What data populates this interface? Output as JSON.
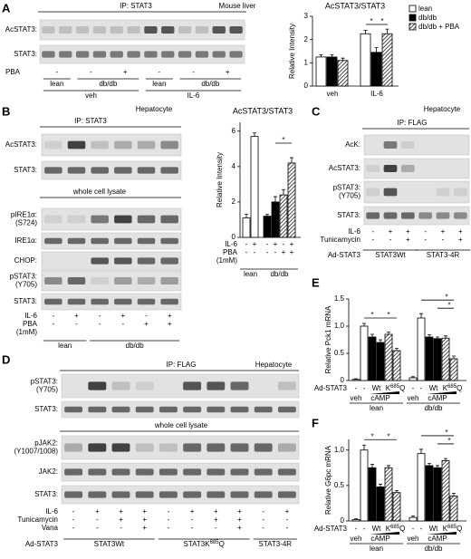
{
  "panels": {
    "A": {
      "letter": "A",
      "ip": "IP: STAT3",
      "source": "Mouse liver",
      "rows": [
        [
          "AcSTAT3:"
        ],
        [
          "STAT3:"
        ]
      ],
      "pba": "PBA",
      "pba_signs": [
        "-",
        "-",
        "+",
        "-",
        "-",
        "+"
      ],
      "genotypes": [
        "lean",
        "db/db",
        "lean",
        "db/db"
      ],
      "treatments": [
        "veh",
        "IL-6"
      ]
    },
    "B": {
      "letter": "B",
      "source": "Hepatocyte",
      "ip": "IP: STAT3",
      "rows_ip": [
        [
          "AcSTAT3:"
        ],
        [
          "STAT3:"
        ]
      ],
      "lysate": "whole cell lysate",
      "rows_lysate": [
        [
          "pIRE1α:",
          "(S724)"
        ],
        [
          "IRE1α:"
        ],
        [
          "CHOP:"
        ],
        [
          "pSTAT3:",
          "(Y705)"
        ],
        [
          "STAT3:"
        ]
      ],
      "conditions": [
        {
          "label": [
            "IL-6"
          ],
          "signs": [
            "-",
            "+",
            "-",
            "+",
            "-",
            "+"
          ]
        },
        {
          "label": [
            "PBA",
            "(1mM)"
          ],
          "signs": [
            "-",
            "-",
            "-",
            "-",
            "+",
            "+"
          ]
        }
      ],
      "groups": [
        "lean",
        "db/db"
      ]
    },
    "C": {
      "letter": "C",
      "source": "Hepatocyte",
      "ip": "IP: FLAG",
      "rows": [
        [
          "AcK:"
        ],
        [
          "AcSTAT3:"
        ],
        [
          "pSTAT3:",
          "(Y705)"
        ],
        [
          "STAT3:"
        ]
      ],
      "conditions": [
        {
          "label": [
            "IL-6"
          ],
          "signs": [
            "-",
            "+",
            "+",
            "-",
            "+",
            "+"
          ]
        },
        {
          "label": [
            "Tunicamycin"
          ],
          "signs": [
            "-",
            "-",
            "+",
            "-",
            "-",
            "+"
          ]
        }
      ],
      "ad": "Ad-STAT3",
      "groups": [
        "STAT3Wt",
        "STAT3-4R"
      ]
    },
    "D": {
      "letter": "D",
      "ip": "IP: FLAG",
      "source": "Hepatocyte",
      "rows_ip": [
        [
          "pSTAT3:",
          "(Y705)"
        ],
        [
          "STAT3:"
        ]
      ],
      "lysate": "whole cell lysate",
      "rows_lysate": [
        [
          "pJAK2:",
          "(Y1007/1008)"
        ],
        [
          "JAK2:"
        ],
        [
          "STAT3:"
        ]
      ],
      "conditions": [
        {
          "label": [
            "IL-6"
          ],
          "signs": [
            "-",
            "+",
            "+",
            "+",
            "-",
            "+",
            "+",
            "+",
            "-",
            "+"
          ]
        },
        {
          "label": [
            "Tunicamycin"
          ],
          "signs": [
            "-",
            "-",
            "+",
            "+",
            "-",
            "-",
            "+",
            "+",
            "-",
            "-"
          ]
        },
        {
          "label": [
            "Vana"
          ],
          "signs": [
            "-",
            "-",
            "-",
            "+",
            "-",
            "-",
            "-",
            "+",
            "-",
            "-"
          ]
        }
      ],
      "ad": "Ad-STAT3",
      "groups": [
        "STAT3Wt",
        {
          "pre": "STAT3K",
          "sup": "685",
          "post": "Q"
        },
        "STAT3-4R"
      ]
    }
  },
  "chart_data": [
    {
      "type": "bar",
      "title": "AcSTAT3/STAT3",
      "ylabel": "Relative Intensity",
      "categories": [
        "veh",
        "IL-6"
      ],
      "ylim": [
        0,
        3
      ],
      "yticks": [
        0,
        1,
        2,
        3
      ],
      "series": [
        {
          "name": "lean",
          "color": "#ffffff",
          "hatched": false,
          "values": [
            1.25,
            2.25
          ],
          "errors": [
            0.1,
            0.15
          ]
        },
        {
          "name": "db/db",
          "color": "#000000",
          "hatched": false,
          "values": [
            1.25,
            1.45
          ],
          "errors": [
            0.1,
            0.2
          ]
        },
        {
          "name": "db/db + PBA",
          "color": "#000000",
          "hatched": true,
          "values": [
            1.1,
            2.25
          ],
          "errors": [
            0.1,
            0.2
          ]
        }
      ],
      "annotations": [
        "*",
        "*"
      ]
    },
    {
      "type": "bar",
      "title": "AcSTAT3/STAT3",
      "ylabel": "Relative Intensity",
      "ylim": [
        0,
        6.5
      ],
      "yticks": [
        0,
        2,
        4,
        6
      ],
      "values": [
        1.1,
        5.7,
        1.2,
        2.0,
        2.4,
        4.2
      ],
      "errors": [
        0.2,
        0.2,
        0.1,
        0.3,
        0.3,
        0.3
      ],
      "colors": [
        "#ffffff",
        "#ffffff",
        "#000000",
        "#000000",
        "#000000",
        "#000000"
      ],
      "hatched": [
        false,
        false,
        false,
        false,
        true,
        true
      ],
      "conditions": [
        {
          "label": [
            "IL-6"
          ],
          "signs": [
            "-",
            "+",
            "-",
            "+",
            "-",
            "+"
          ]
        },
        {
          "label": [
            "PBA",
            "(1mM)"
          ],
          "signs": [
            "-",
            "-",
            "-",
            "-",
            "+",
            "+"
          ]
        }
      ],
      "groups": [
        "lean",
        "db/db"
      ],
      "annotations": [
        "*"
      ]
    },
    {
      "type": "bar",
      "letter": "E",
      "ylabel": "Relative Pck1 mRNA",
      "ylim": [
        0,
        1.5
      ],
      "yticks": [
        0,
        0.5,
        {
          "value": 1,
          "label": "1.0"
        },
        1.5
      ],
      "values": [
        0.02,
        1.0,
        0.8,
        0.7,
        0.85,
        0.55,
        0.05,
        1.15,
        0.8,
        0.77,
        0.78,
        0.4
      ],
      "errors": [
        0.01,
        0.05,
        0.05,
        0.05,
        0.04,
        0.04,
        0.02,
        0.08,
        0.04,
        0.03,
        0.04,
        0.05
      ],
      "colors": [
        "#ffffff",
        "#ffffff",
        "#000000",
        "#000000",
        "#000000",
        "#000000",
        "#ffffff",
        "#ffffff",
        "#000000",
        "#000000",
        "#000000",
        "#000000"
      ],
      "hatched": [
        false,
        false,
        false,
        false,
        true,
        true,
        false,
        false,
        false,
        false,
        true,
        true
      ],
      "ad": "Ad-STAT3",
      "lanes": [
        "-",
        "-",
        "Wt",
        {
          "pre": "K",
          "sup": "685",
          "post": "Q"
        }
      ],
      "treatments": [
        "veh",
        "cAMP"
      ],
      "groups": [
        "lean",
        "db/db"
      ],
      "annotations": [
        "*",
        "*",
        "*",
        "*"
      ]
    },
    {
      "type": "bar",
      "letter": "F",
      "ylabel": "Relative G6pc mRNA",
      "ylim": [
        0,
        1.15
      ],
      "yticks": [
        0,
        0.5,
        {
          "value": 1,
          "label": "1.0"
        }
      ],
      "values": [
        0.02,
        1.0,
        0.75,
        0.48,
        0.75,
        0.4,
        0.05,
        0.95,
        0.78,
        0.75,
        0.85,
        0.35
      ],
      "errors": [
        0.01,
        0.07,
        0.05,
        0.04,
        0.03,
        0.03,
        0.02,
        0.06,
        0.03,
        0.03,
        0.03,
        0.04
      ],
      "colors": [
        "#ffffff",
        "#ffffff",
        "#000000",
        "#000000",
        "#000000",
        "#000000",
        "#ffffff",
        "#ffffff",
        "#000000",
        "#000000",
        "#000000",
        "#000000"
      ],
      "hatched": [
        false,
        false,
        false,
        false,
        true,
        true,
        false,
        false,
        false,
        false,
        true,
        true
      ],
      "ad": "Ad-STAT3",
      "lanes": [
        "-",
        "-",
        "Wt",
        {
          "pre": "K",
          "sup": "685",
          "post": "Q"
        }
      ],
      "treatments": [
        "veh",
        "cAMP"
      ],
      "groups": [
        "lean",
        "db/db"
      ],
      "annotations": [
        "*",
        "*",
        "*",
        "*"
      ]
    }
  ]
}
